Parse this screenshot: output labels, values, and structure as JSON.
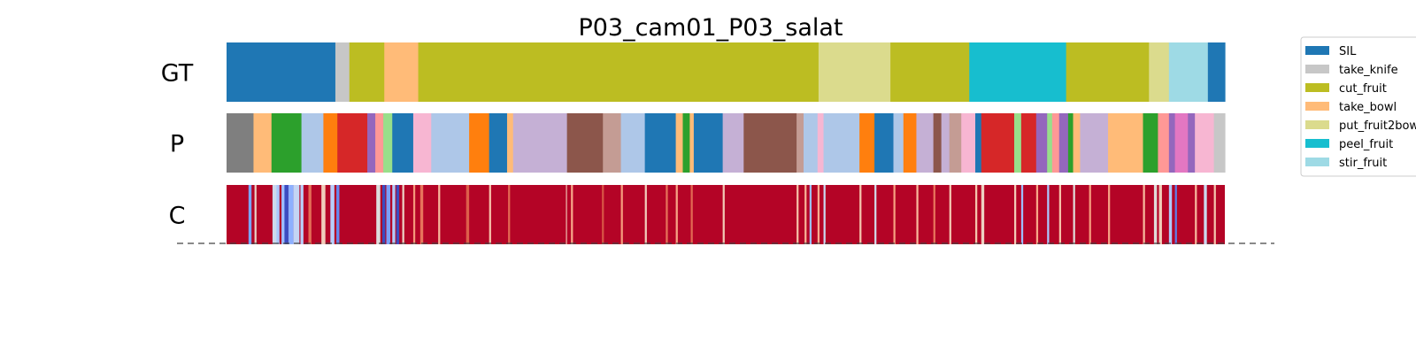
{
  "chart_data": {
    "type": "bar",
    "title": "P03_cam01_P03_salat",
    "x_range": [
      0,
      1
    ],
    "rows": [
      {
        "name": "GT",
        "segments": [
          {
            "start": 0.0,
            "end": 0.109,
            "label": "SIL"
          },
          {
            "start": 0.109,
            "end": 0.123,
            "label": "take_knife"
          },
          {
            "start": 0.123,
            "end": 0.158,
            "label": "cut_fruit"
          },
          {
            "start": 0.158,
            "end": 0.192,
            "label": "take_bowl"
          },
          {
            "start": 0.192,
            "end": 0.593,
            "label": "cut_fruit"
          },
          {
            "start": 0.593,
            "end": 0.665,
            "label": "put_fruit2bowl"
          },
          {
            "start": 0.665,
            "end": 0.744,
            "label": "cut_fruit"
          },
          {
            "start": 0.744,
            "end": 0.841,
            "label": "peel_fruit"
          },
          {
            "start": 0.841,
            "end": 0.924,
            "label": "cut_fruit"
          },
          {
            "start": 0.924,
            "end": 0.944,
            "label": "put_fruit2bowl"
          },
          {
            "start": 0.944,
            "end": 0.983,
            "label": "stir_fruit"
          },
          {
            "start": 0.983,
            "end": 1.0,
            "label": "SIL"
          }
        ]
      },
      {
        "name": "P",
        "segments": [
          {
            "start": 0.0,
            "end": 0.027,
            "color": "#7f7f7f"
          },
          {
            "start": 0.027,
            "end": 0.045,
            "color": "#ffbb78"
          },
          {
            "start": 0.045,
            "end": 0.075,
            "color": "#2ca02c"
          },
          {
            "start": 0.075,
            "end": 0.097,
            "color": "#aec7e8"
          },
          {
            "start": 0.097,
            "end": 0.111,
            "color": "#ff7f0e"
          },
          {
            "start": 0.111,
            "end": 0.141,
            "color": "#d62728"
          },
          {
            "start": 0.141,
            "end": 0.149,
            "color": "#9467bd"
          },
          {
            "start": 0.149,
            "end": 0.157,
            "color": "#ff9896"
          },
          {
            "start": 0.157,
            "end": 0.166,
            "color": "#98df8a"
          },
          {
            "start": 0.166,
            "end": 0.187,
            "color": "#1f77b4"
          },
          {
            "start": 0.187,
            "end": 0.205,
            "color": "#f7b6d2"
          },
          {
            "start": 0.205,
            "end": 0.243,
            "color": "#aec7e8"
          },
          {
            "start": 0.243,
            "end": 0.263,
            "color": "#ff7f0e"
          },
          {
            "start": 0.263,
            "end": 0.281,
            "color": "#1f77b4"
          },
          {
            "start": 0.281,
            "end": 0.287,
            "color": "#ffbb78"
          },
          {
            "start": 0.287,
            "end": 0.341,
            "color": "#c5b0d5"
          },
          {
            "start": 0.341,
            "end": 0.377,
            "color": "#8c564b"
          },
          {
            "start": 0.377,
            "end": 0.395,
            "color": "#c49c94"
          },
          {
            "start": 0.395,
            "end": 0.419,
            "color": "#aec7e8"
          },
          {
            "start": 0.419,
            "end": 0.45,
            "color": "#1f77b4"
          },
          {
            "start": 0.45,
            "end": 0.457,
            "color": "#ffbb78"
          },
          {
            "start": 0.457,
            "end": 0.464,
            "color": "#2ca02c"
          },
          {
            "start": 0.464,
            "end": 0.468,
            "color": "#ffbb78"
          },
          {
            "start": 0.468,
            "end": 0.497,
            "color": "#1f77b4"
          },
          {
            "start": 0.497,
            "end": 0.518,
            "color": "#c5b0d5"
          },
          {
            "start": 0.518,
            "end": 0.571,
            "color": "#8c564b"
          },
          {
            "start": 0.571,
            "end": 0.578,
            "color": "#c49c94"
          },
          {
            "start": 0.578,
            "end": 0.592,
            "color": "#aec7e8"
          },
          {
            "start": 0.592,
            "end": 0.598,
            "color": "#f7b6d2"
          },
          {
            "start": 0.598,
            "end": 0.634,
            "color": "#aec7e8"
          },
          {
            "start": 0.634,
            "end": 0.649,
            "color": "#ff7f0e"
          },
          {
            "start": 0.649,
            "end": 0.668,
            "color": "#1f77b4"
          },
          {
            "start": 0.668,
            "end": 0.678,
            "color": "#aec7e8"
          },
          {
            "start": 0.678,
            "end": 0.691,
            "color": "#ff7f0e"
          },
          {
            "start": 0.691,
            "end": 0.708,
            "color": "#c5b0d5"
          },
          {
            "start": 0.708,
            "end": 0.716,
            "color": "#8c564b"
          },
          {
            "start": 0.716,
            "end": 0.724,
            "color": "#c5b0d5"
          },
          {
            "start": 0.724,
            "end": 0.736,
            "color": "#c49c94"
          },
          {
            "start": 0.736,
            "end": 0.75,
            "color": "#f7b6d2"
          },
          {
            "start": 0.75,
            "end": 0.756,
            "color": "#1f77b4"
          },
          {
            "start": 0.756,
            "end": 0.789,
            "color": "#d62728"
          },
          {
            "start": 0.789,
            "end": 0.796,
            "color": "#98df8a"
          },
          {
            "start": 0.796,
            "end": 0.811,
            "color": "#d62728"
          },
          {
            "start": 0.811,
            "end": 0.822,
            "color": "#9467bd"
          },
          {
            "start": 0.822,
            "end": 0.827,
            "color": "#98df8a"
          },
          {
            "start": 0.827,
            "end": 0.834,
            "color": "#ff9896"
          },
          {
            "start": 0.834,
            "end": 0.843,
            "color": "#9467bd"
          },
          {
            "start": 0.843,
            "end": 0.848,
            "color": "#2ca02c"
          },
          {
            "start": 0.848,
            "end": 0.855,
            "color": "#ffbb78"
          },
          {
            "start": 0.855,
            "end": 0.883,
            "color": "#c5b0d5"
          },
          {
            "start": 0.883,
            "end": 0.918,
            "color": "#ffbb78"
          },
          {
            "start": 0.918,
            "end": 0.933,
            "color": "#2ca02c"
          },
          {
            "start": 0.933,
            "end": 0.944,
            "color": "#ff9896"
          },
          {
            "start": 0.944,
            "end": 0.95,
            "color": "#9467bd"
          },
          {
            "start": 0.95,
            "end": 0.963,
            "color": "#e377c2"
          },
          {
            "start": 0.963,
            "end": 0.97,
            "color": "#9467bd"
          },
          {
            "start": 0.97,
            "end": 0.989,
            "color": "#f7b6d2"
          },
          {
            "start": 0.989,
            "end": 1.0,
            "color": "#c7c7c7"
          }
        ]
      },
      {
        "name": "C",
        "base_color": "#b40426",
        "stripes": [
          {
            "x": 0.022,
            "w": 0.003,
            "color": "#7aa5f5"
          },
          {
            "x": 0.028,
            "w": 0.002,
            "color": "#e8d0c5"
          },
          {
            "x": 0.046,
            "w": 0.006,
            "color": "#cdd9ec"
          },
          {
            "x": 0.05,
            "w": 0.003,
            "color": "#aac7fd"
          },
          {
            "x": 0.055,
            "w": 0.006,
            "color": "#9ebeff"
          },
          {
            "x": 0.058,
            "w": 0.004,
            "color": "#3b4cc0"
          },
          {
            "x": 0.062,
            "w": 0.005,
            "color": "#8db0fe"
          },
          {
            "x": 0.067,
            "w": 0.006,
            "color": "#c3d5f4"
          },
          {
            "x": 0.074,
            "w": 0.003,
            "color": "#b9d0f9"
          },
          {
            "x": 0.082,
            "w": 0.003,
            "color": "#e36c55"
          },
          {
            "x": 0.095,
            "w": 0.004,
            "color": "#f0cdbb"
          },
          {
            "x": 0.104,
            "w": 0.004,
            "color": "#b6cefa"
          },
          {
            "x": 0.11,
            "w": 0.003,
            "color": "#6788ee"
          },
          {
            "x": 0.15,
            "w": 0.004,
            "color": "#dcdddd"
          },
          {
            "x": 0.156,
            "w": 0.003,
            "color": "#3b4cc0"
          },
          {
            "x": 0.16,
            "w": 0.004,
            "color": "#7b9ff9"
          },
          {
            "x": 0.166,
            "w": 0.003,
            "color": "#b2ccfb"
          },
          {
            "x": 0.17,
            "w": 0.003,
            "color": "#3b4cc0"
          },
          {
            "x": 0.176,
            "w": 0.002,
            "color": "#ecd3c5"
          },
          {
            "x": 0.187,
            "w": 0.002,
            "color": "#f4987a"
          },
          {
            "x": 0.194,
            "w": 0.003,
            "color": "#e7745b"
          },
          {
            "x": 0.212,
            "w": 0.002,
            "color": "#f7b89c"
          },
          {
            "x": 0.24,
            "w": 0.003,
            "color": "#dd5f4b"
          },
          {
            "x": 0.263,
            "w": 0.002,
            "color": "#f5c1a9"
          },
          {
            "x": 0.282,
            "w": 0.002,
            "color": "#e26952"
          },
          {
            "x": 0.34,
            "w": 0.001,
            "color": "#f2cbb7"
          },
          {
            "x": 0.345,
            "w": 0.002,
            "color": "#f7a889"
          },
          {
            "x": 0.376,
            "w": 0.002,
            "color": "#d75445"
          },
          {
            "x": 0.395,
            "w": 0.002,
            "color": "#f59c7d"
          },
          {
            "x": 0.419,
            "w": 0.002,
            "color": "#f1cdba"
          },
          {
            "x": 0.44,
            "w": 0.002,
            "color": "#e67259"
          },
          {
            "x": 0.45,
            "w": 0.002,
            "color": "#f6a385"
          },
          {
            "x": 0.465,
            "w": 0.002,
            "color": "#e26952"
          },
          {
            "x": 0.497,
            "w": 0.002,
            "color": "#f2c9b4"
          },
          {
            "x": 0.571,
            "w": 0.002,
            "color": "#f5c0a7"
          },
          {
            "x": 0.579,
            "w": 0.002,
            "color": "#f7b396"
          },
          {
            "x": 0.584,
            "w": 0.002,
            "color": "#9ebeff"
          },
          {
            "x": 0.592,
            "w": 0.002,
            "color": "#f7ad90"
          },
          {
            "x": 0.598,
            "w": 0.002,
            "color": "#cad8ef"
          },
          {
            "x": 0.634,
            "w": 0.002,
            "color": "#f4c5ad"
          },
          {
            "x": 0.649,
            "w": 0.002,
            "color": "#d1dae9"
          },
          {
            "x": 0.668,
            "w": 0.002,
            "color": "#f59f80"
          },
          {
            "x": 0.691,
            "w": 0.002,
            "color": "#f7b89c"
          },
          {
            "x": 0.708,
            "w": 0.002,
            "color": "#e8765c"
          },
          {
            "x": 0.724,
            "w": 0.002,
            "color": "#f3c7b1"
          },
          {
            "x": 0.75,
            "w": 0.002,
            "color": "#f4c5ad"
          },
          {
            "x": 0.756,
            "w": 0.003,
            "color": "#edd1c2"
          },
          {
            "x": 0.789,
            "w": 0.002,
            "color": "#f2cbb7"
          },
          {
            "x": 0.796,
            "w": 0.002,
            "color": "#9ebeff"
          },
          {
            "x": 0.811,
            "w": 0.002,
            "color": "#f7a889"
          },
          {
            "x": 0.822,
            "w": 0.002,
            "color": "#aac7fd"
          },
          {
            "x": 0.834,
            "w": 0.002,
            "color": "#f5c0a7"
          },
          {
            "x": 0.848,
            "w": 0.002,
            "color": "#e0dbd8"
          },
          {
            "x": 0.864,
            "w": 0.002,
            "color": "#f59c7d"
          },
          {
            "x": 0.883,
            "w": 0.002,
            "color": "#f6a385"
          },
          {
            "x": 0.918,
            "w": 0.002,
            "color": "#f7b89c"
          },
          {
            "x": 0.929,
            "w": 0.003,
            "color": "#e0dbd8"
          },
          {
            "x": 0.934,
            "w": 0.003,
            "color": "#f1ccb8"
          },
          {
            "x": 0.944,
            "w": 0.003,
            "color": "#aec9fc"
          },
          {
            "x": 0.95,
            "w": 0.002,
            "color": "#5e7de7"
          },
          {
            "x": 0.97,
            "w": 0.002,
            "color": "#f7b89c"
          },
          {
            "x": 0.979,
            "w": 0.003,
            "color": "#cad8ef"
          },
          {
            "x": 0.989,
            "w": 0.002,
            "color": "#f4c5ad"
          }
        ]
      }
    ],
    "legend": {
      "placement": "right",
      "entries": [
        {
          "label": "SIL",
          "color": "#1f77b4"
        },
        {
          "label": "take_knife",
          "color": "#c7c7c7"
        },
        {
          "label": "cut_fruit",
          "color": "#bcbd22"
        },
        {
          "label": "take_bowl",
          "color": "#ffbb78"
        },
        {
          "label": "put_fruit2bowl",
          "color": "#dbdb8d"
        },
        {
          "label": "peel_fruit",
          "color": "#17becf"
        },
        {
          "label": "stir_fruit",
          "color": "#9edae5"
        }
      ]
    }
  }
}
